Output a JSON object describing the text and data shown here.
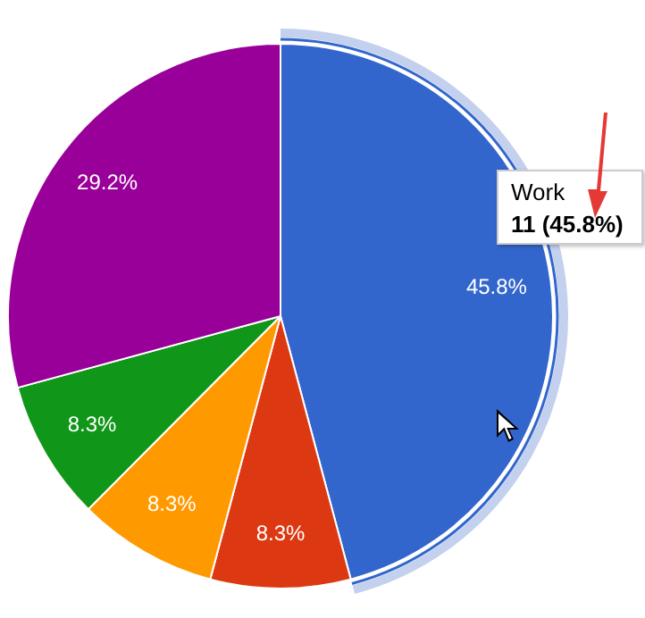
{
  "chart_data": {
    "type": "pie",
    "categories": [
      "Work",
      null,
      null,
      null,
      null
    ],
    "values": [
      45.8,
      8.3,
      8.3,
      8.3,
      29.2
    ],
    "colors": [
      "#3366cc",
      "#dc3912",
      "#ff9900",
      "#109618",
      "#990099"
    ],
    "value_labels": [
      "45.8%",
      "8.3%",
      "8.3%",
      "8.3%",
      "29.2%"
    ],
    "annotations": [
      {
        "text": "11 (45.8%)",
        "x": "Work"
      }
    ]
  }
}
